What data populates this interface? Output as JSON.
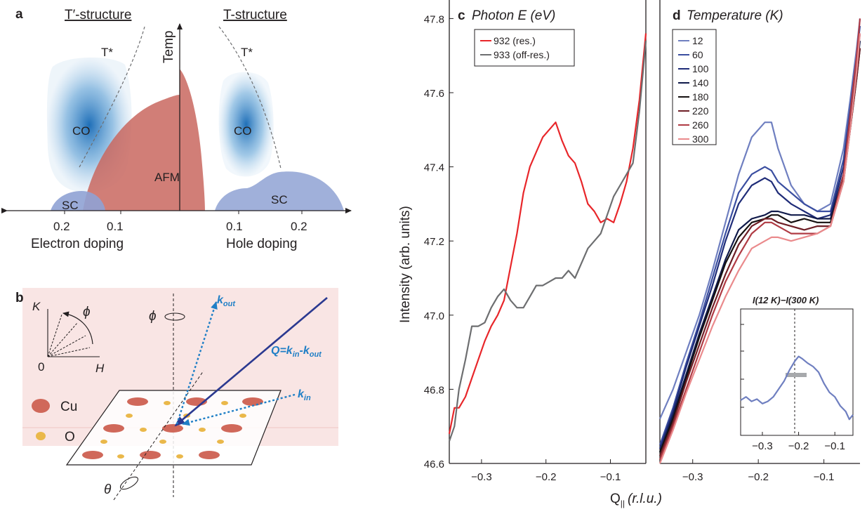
{
  "panel_a": {
    "label": "a",
    "left_title": "T′-structure",
    "right_title": "T-structure",
    "temp_axis": "Temp",
    "t_star_left": "T*",
    "t_star_right": "T*",
    "co_left": "CO",
    "co_right": "CO",
    "afm": "AFM",
    "sc_left": "SC",
    "sc_right": "SC",
    "ticks_left": [
      "0.2",
      "0.1"
    ],
    "ticks_right": [
      "0.1",
      "0.2"
    ],
    "xlabel_left": "Electron doping",
    "xlabel_right": "Hole doping",
    "colors": {
      "co": "#2a7fc4",
      "afm": "#c9675f",
      "sc": "#8fa2d4"
    }
  },
  "panel_b": {
    "label": "b",
    "axis_k": "K",
    "axis_h": "H",
    "origin": "0",
    "phi": "ϕ",
    "phi_axis": "ϕ",
    "theta": "θ",
    "k_out": "k",
    "k_out_sub": "out",
    "k_in": "k",
    "k_in_sub": "in",
    "q_label_prefix": "Q=",
    "q_k1": "k",
    "q_sub1": "in",
    "q_minus": "-",
    "q_k2": "k",
    "q_sub2": "out",
    "legend_cu": "Cu",
    "legend_o": "O",
    "colors": {
      "cu": "#d0685a",
      "o": "#eab84a",
      "beam": "#2b3990",
      "scatter": "#1f7fc6"
    }
  },
  "shared": {
    "ylabel": "Intensity (arb. units)",
    "xlabel_main": "Q",
    "xlabel_sub": "||",
    "xlabel_units": "(r.l.u.)"
  },
  "chart_data": [
    {
      "type": "line",
      "panel": "c",
      "title": "Photon E (eV)",
      "xlim": [
        -0.35,
        -0.045
      ],
      "ylim": [
        46.6,
        47.85
      ],
      "xticks": [
        "−0.3",
        "−0.2",
        "−0.1"
      ],
      "yticks": [
        "46.6",
        "46.8",
        "47.0",
        "47.2",
        "47.4",
        "47.6",
        "47.8"
      ],
      "series": [
        {
          "name": "932 (res.)",
          "color": "#e8262a",
          "x": [
            -0.35,
            -0.342,
            -0.335,
            -0.325,
            -0.315,
            -0.305,
            -0.295,
            -0.285,
            -0.275,
            -0.265,
            -0.255,
            -0.245,
            -0.235,
            -0.225,
            -0.215,
            -0.205,
            -0.195,
            -0.185,
            -0.175,
            -0.165,
            -0.155,
            -0.145,
            -0.135,
            -0.125,
            -0.115,
            -0.105,
            -0.095,
            -0.085,
            -0.075,
            -0.065,
            -0.055,
            -0.045
          ],
          "values": [
            46.68,
            46.75,
            46.75,
            46.78,
            46.83,
            46.88,
            46.93,
            46.97,
            47.0,
            47.04,
            47.13,
            47.22,
            47.33,
            47.4,
            47.44,
            47.48,
            47.5,
            47.52,
            47.47,
            47.43,
            47.41,
            47.36,
            47.3,
            47.28,
            47.25,
            47.26,
            47.25,
            47.3,
            47.36,
            47.45,
            47.58,
            47.76
          ]
        },
        {
          "name": "933 (off-res.)",
          "color": "#6d6e70",
          "x": [
            -0.35,
            -0.342,
            -0.335,
            -0.325,
            -0.315,
            -0.305,
            -0.295,
            -0.285,
            -0.275,
            -0.265,
            -0.255,
            -0.245,
            -0.235,
            -0.225,
            -0.215,
            -0.205,
            -0.195,
            -0.185,
            -0.175,
            -0.165,
            -0.155,
            -0.145,
            -0.135,
            -0.125,
            -0.115,
            -0.105,
            -0.095,
            -0.085,
            -0.075,
            -0.065,
            -0.055,
            -0.045
          ],
          "values": [
            46.66,
            46.7,
            46.8,
            46.88,
            46.97,
            46.97,
            46.98,
            47.02,
            47.05,
            47.07,
            47.04,
            47.02,
            47.02,
            47.05,
            47.08,
            47.08,
            47.09,
            47.1,
            47.1,
            47.12,
            47.1,
            47.14,
            47.18,
            47.2,
            47.22,
            47.27,
            47.32,
            47.35,
            47.38,
            47.41,
            47.55,
            47.74
          ]
        }
      ]
    },
    {
      "type": "line",
      "panel": "d",
      "title": "Temperature (K)",
      "xlim": [
        -0.35,
        -0.045
      ],
      "ylim": [
        46.6,
        47.85
      ],
      "xticks": [
        "−0.3",
        "−0.2",
        "−0.1"
      ],
      "series": [
        {
          "name": "12",
          "color": "#6f7fc0",
          "x": [
            -0.35,
            -0.33,
            -0.31,
            -0.29,
            -0.27,
            -0.25,
            -0.23,
            -0.21,
            -0.19,
            -0.18,
            -0.17,
            -0.15,
            -0.13,
            -0.11,
            -0.09,
            -0.07,
            -0.06,
            -0.05,
            -0.045
          ],
          "values": [
            46.72,
            46.8,
            46.9,
            47.0,
            47.12,
            47.25,
            47.38,
            47.48,
            47.52,
            47.52,
            47.45,
            47.35,
            47.3,
            47.28,
            47.3,
            47.45,
            47.58,
            47.72,
            47.8
          ]
        },
        {
          "name": "60",
          "color": "#3a4ea0",
          "x": [
            -0.35,
            -0.33,
            -0.31,
            -0.29,
            -0.27,
            -0.25,
            -0.23,
            -0.21,
            -0.19,
            -0.18,
            -0.17,
            -0.15,
            -0.13,
            -0.11,
            -0.09,
            -0.07,
            -0.06,
            -0.05,
            -0.045
          ],
          "values": [
            46.65,
            46.75,
            46.87,
            46.98,
            47.1,
            47.22,
            47.33,
            47.38,
            47.4,
            47.39,
            47.36,
            47.33,
            47.3,
            47.28,
            47.28,
            47.42,
            47.56,
            47.7,
            47.78
          ]
        },
        {
          "name": "100",
          "color": "#1f2c78",
          "x": [
            -0.35,
            -0.33,
            -0.31,
            -0.29,
            -0.27,
            -0.25,
            -0.23,
            -0.21,
            -0.19,
            -0.18,
            -0.17,
            -0.15,
            -0.13,
            -0.11,
            -0.09,
            -0.07,
            -0.06,
            -0.05,
            -0.045
          ],
          "values": [
            46.64,
            46.74,
            46.86,
            46.97,
            47.08,
            47.2,
            47.3,
            47.35,
            47.37,
            47.36,
            47.33,
            47.3,
            47.28,
            47.26,
            47.27,
            47.4,
            47.54,
            47.68,
            47.76
          ]
        },
        {
          "name": "140",
          "color": "#101a4a",
          "x": [
            -0.35,
            -0.33,
            -0.31,
            -0.29,
            -0.27,
            -0.25,
            -0.23,
            -0.21,
            -0.19,
            -0.18,
            -0.17,
            -0.15,
            -0.13,
            -0.11,
            -0.09,
            -0.07,
            -0.06,
            -0.05,
            -0.045
          ],
          "values": [
            46.63,
            46.73,
            46.84,
            46.95,
            47.05,
            47.15,
            47.23,
            47.26,
            47.27,
            47.28,
            47.28,
            47.27,
            47.27,
            47.26,
            47.26,
            47.38,
            47.52,
            47.66,
            47.74
          ]
        },
        {
          "name": "180",
          "color": "#151010",
          "x": [
            -0.35,
            -0.33,
            -0.31,
            -0.29,
            -0.27,
            -0.25,
            -0.23,
            -0.21,
            -0.19,
            -0.18,
            -0.17,
            -0.15,
            -0.13,
            -0.11,
            -0.09,
            -0.07,
            -0.06,
            -0.05,
            -0.045
          ],
          "values": [
            46.63,
            46.72,
            46.83,
            46.94,
            47.04,
            47.14,
            47.21,
            47.25,
            47.26,
            47.27,
            47.27,
            47.25,
            47.26,
            47.25,
            47.25,
            47.37,
            47.5,
            47.64,
            47.72
          ]
        },
        {
          "name": "220",
          "color": "#6e1f26",
          "x": [
            -0.35,
            -0.33,
            -0.31,
            -0.29,
            -0.27,
            -0.25,
            -0.23,
            -0.21,
            -0.19,
            -0.18,
            -0.17,
            -0.15,
            -0.13,
            -0.11,
            -0.09,
            -0.07,
            -0.06,
            -0.05,
            -0.045
          ],
          "values": [
            46.62,
            46.71,
            46.82,
            46.92,
            47.02,
            47.11,
            47.19,
            47.24,
            47.26,
            47.26,
            47.25,
            47.24,
            47.23,
            47.24,
            47.24,
            47.36,
            47.5,
            47.64,
            47.72
          ]
        },
        {
          "name": "260",
          "color": "#b03b44",
          "x": [
            -0.35,
            -0.33,
            -0.31,
            -0.29,
            -0.27,
            -0.25,
            -0.23,
            -0.21,
            -0.19,
            -0.18,
            -0.17,
            -0.15,
            -0.13,
            -0.11,
            -0.09,
            -0.07,
            -0.06,
            -0.05,
            -0.045
          ],
          "values": [
            46.61,
            46.7,
            46.8,
            46.9,
            47.0,
            47.09,
            47.16,
            47.22,
            47.25,
            47.25,
            47.24,
            47.22,
            47.22,
            47.22,
            47.24,
            47.38,
            47.54,
            47.7,
            47.8
          ]
        },
        {
          "name": "300",
          "color": "#ea8a8c",
          "x": [
            -0.35,
            -0.33,
            -0.31,
            -0.29,
            -0.27,
            -0.25,
            -0.23,
            -0.21,
            -0.19,
            -0.18,
            -0.17,
            -0.15,
            -0.13,
            -0.11,
            -0.09,
            -0.07,
            -0.06,
            -0.05,
            -0.045
          ],
          "values": [
            46.6,
            46.69,
            46.79,
            46.88,
            46.97,
            47.05,
            47.12,
            47.18,
            47.2,
            47.21,
            47.21,
            47.2,
            47.21,
            47.22,
            47.24,
            47.36,
            47.5,
            47.66,
            47.76
          ]
        }
      ]
    },
    {
      "type": "line",
      "panel": "d-inset",
      "title": "I(12 K)−I(300 K)",
      "xlim": [
        -0.36,
        -0.05
      ],
      "ylim": [
        0,
        1
      ],
      "xticks": [
        "−0.3",
        "−0.2",
        "−0.1"
      ],
      "series": [
        {
          "color": "#6f7fc0",
          "x": [
            -0.36,
            -0.345,
            -0.33,
            -0.315,
            -0.3,
            -0.285,
            -0.27,
            -0.255,
            -0.24,
            -0.225,
            -0.21,
            -0.2,
            -0.19,
            -0.175,
            -0.16,
            -0.145,
            -0.13,
            -0.115,
            -0.1,
            -0.085,
            -0.07,
            -0.06,
            -0.05
          ],
          "values": [
            0.25,
            0.28,
            0.24,
            0.26,
            0.22,
            0.24,
            0.28,
            0.35,
            0.42,
            0.52,
            0.6,
            0.64,
            0.62,
            0.58,
            0.55,
            0.5,
            0.4,
            0.32,
            0.28,
            0.2,
            0.15,
            0.08,
            0.12
          ]
        }
      ]
    }
  ]
}
